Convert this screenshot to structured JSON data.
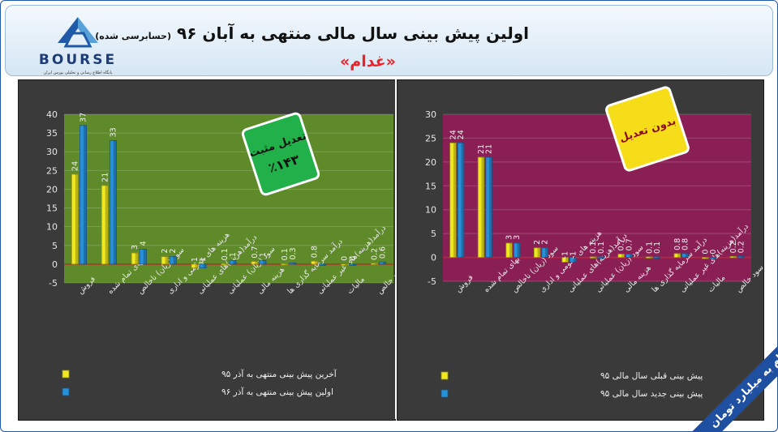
{
  "header": {
    "title": "اولین پیش بینی سال مالی منتهی به آبان ۹۶",
    "title_note": "(حسابرسی شده)",
    "subtitle": "«غدام»",
    "logo_text": "BOURSE",
    "logo_tagline": "پایگاه اطلاع رسانی و تحلیلی بورس ایران"
  },
  "footer_note": "ارقام به میلیارد تومان",
  "colors": {
    "yellow": "#f0e820",
    "blue": "#2890d8",
    "left_plot_bg": "#5e8a2a",
    "right_plot_bg": "#8a1f55",
    "badge_green": "#22b04a",
    "badge_yellow": "#f5dd1a",
    "zero_line": "#c0282a"
  },
  "chart_data": [
    {
      "type": "bar",
      "ylim": [
        -5,
        40
      ],
      "yticks": [
        -5,
        0,
        5,
        10,
        15,
        20,
        25,
        30,
        35,
        40
      ],
      "categories": [
        "فروش",
        "بهای تمام شده",
        "سود (زیان) ناخالص",
        "هزینه های عمومی و اداری",
        "درآمد(هزینه)های عملیاتی",
        "سود (زیان) عملیاتی",
        "هزینه مالی",
        "درآمد سرمایه گذاری ها",
        "درآمد(هزینه)های غیر عملیاتی",
        "مالیات",
        "سود خالص"
      ],
      "series": [
        {
          "name": "آخرین پیش بینی منتهی به آذر ۹۵",
          "values": [
            24,
            21,
            3,
            2,
            -1,
            0.1,
            0.7,
            0.1,
            0.8,
            0,
            0.2
          ],
          "labels": [
            "24",
            "21",
            "3",
            "2",
            "-1",
            "0.1",
            "0.7",
            "0.1",
            "0.8",
            "0",
            "0.2"
          ]
        },
        {
          "name": "اولین پیش بینی منتهی به آذر ۹۶",
          "values": [
            37,
            33,
            4,
            2,
            -1,
            1,
            1,
            0.3,
            0,
            0,
            0.6
          ],
          "labels": [
            "37",
            "33",
            "4",
            "2",
            "-1",
            "1",
            "1",
            "0.3",
            "",
            "0",
            "0.6"
          ]
        }
      ],
      "badge": {
        "line1": "تعدیل مثبت",
        "line2": "٪۱۴۳"
      }
    },
    {
      "type": "bar",
      "ylim": [
        -5,
        30
      ],
      "yticks": [
        -5,
        0,
        5,
        10,
        15,
        20,
        25,
        30
      ],
      "categories": [
        "فروش",
        "بهای تمام شده",
        "سود (زیان) ناخالص",
        "هزینه های عمومی و اداری",
        "درآمد(هزینه)های عملیاتی",
        "سود (زیان) عملیاتی",
        "هزینه مالی",
        "درآمد سرمایه گذاری ها",
        "درآمد(هزینه)های غیر عملیاتی",
        "مالیات",
        "سود خالص"
      ],
      "series": [
        {
          "name": "پیش بینی قبلی سال مالی ۹۵",
          "values": [
            24,
            21,
            3,
            2,
            -1,
            0.1,
            0.7,
            0.1,
            0.8,
            0,
            0.2
          ],
          "labels": [
            "24",
            "21",
            "3",
            "2",
            "-1",
            "0.1",
            "0.7",
            "0.1",
            "0.8",
            "0",
            "0.2"
          ]
        },
        {
          "name": "پیش بینی جدید سال مالی ۹۵",
          "values": [
            24,
            21,
            3,
            2,
            -1,
            0.1,
            0.7,
            0.1,
            0.8,
            0,
            0.2
          ],
          "labels": [
            "24",
            "21",
            "3",
            "2",
            "-1",
            "0.1",
            "0.7",
            "0.1",
            "0.8",
            "0",
            "0.2"
          ]
        }
      ],
      "badge": {
        "line1": "بدون تعدیل",
        "line2": ""
      }
    }
  ]
}
